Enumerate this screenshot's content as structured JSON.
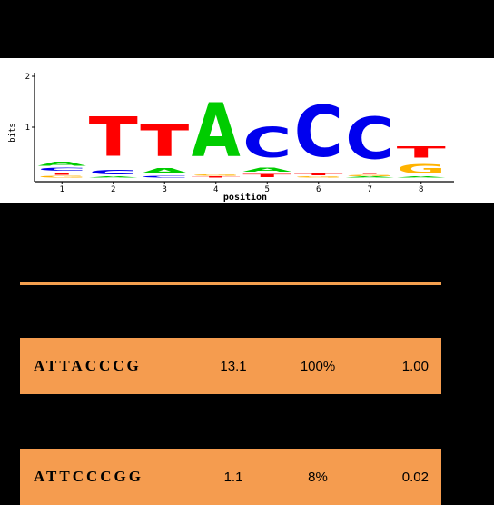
{
  "chart_data": {
    "type": "sequence-logo",
    "ylabel": "bits",
    "xlabel": "position",
    "ylim": [
      0,
      2
    ],
    "y_ticks": [
      "2",
      "1"
    ],
    "positions": [
      "1",
      "2",
      "3",
      "4",
      "5",
      "6",
      "7",
      "8"
    ],
    "columns": [
      [
        {
          "base": "G",
          "bits": 0.05
        },
        {
          "base": "T",
          "bits": 0.07
        },
        {
          "base": "C",
          "bits": 0.1
        },
        {
          "base": "A",
          "bits": 0.12
        }
      ],
      [
        {
          "base": "A",
          "bits": 0.04
        },
        {
          "base": "C",
          "bits": 0.14
        },
        {
          "base": "T",
          "bits": 1.25
        }
      ],
      [
        {
          "base": "C",
          "bits": 0.06
        },
        {
          "base": "A",
          "bits": 0.16
        },
        {
          "base": "T",
          "bits": 1.0
        }
      ],
      [
        {
          "base": "T",
          "bits": 0.04
        },
        {
          "base": "G",
          "bits": 0.04
        },
        {
          "base": "A",
          "bits": 1.7
        }
      ],
      [
        {
          "base": "T",
          "bits": 0.1
        },
        {
          "base": "A",
          "bits": 0.12
        },
        {
          "base": "C",
          "bits": 0.95
        }
      ],
      [
        {
          "base": "G",
          "bits": 0.04
        },
        {
          "base": "T",
          "bits": 0.06
        },
        {
          "base": "C",
          "bits": 1.62
        }
      ],
      [
        {
          "base": "A",
          "bits": 0.03
        },
        {
          "base": "G",
          "bits": 0.04
        },
        {
          "base": "T",
          "bits": 0.04
        },
        {
          "base": "C",
          "bits": 1.32
        }
      ],
      [
        {
          "base": "A",
          "bits": 0.03
        },
        {
          "base": "G",
          "bits": 0.3
        },
        {
          "base": "T",
          "bits": 0.35
        }
      ]
    ],
    "colors": {
      "A": "#00cc00",
      "C": "#0000ee",
      "G": "#ffb300",
      "T": "#ff0000"
    }
  },
  "table": {
    "rows": [
      {
        "sequence": "ATTACCCG",
        "score": "13.1",
        "percent": "100%",
        "ratio": "1.00"
      },
      {
        "sequence": "ATTCCCGG",
        "score": "1.1",
        "percent": "8%",
        "ratio": "0.02"
      }
    ]
  }
}
